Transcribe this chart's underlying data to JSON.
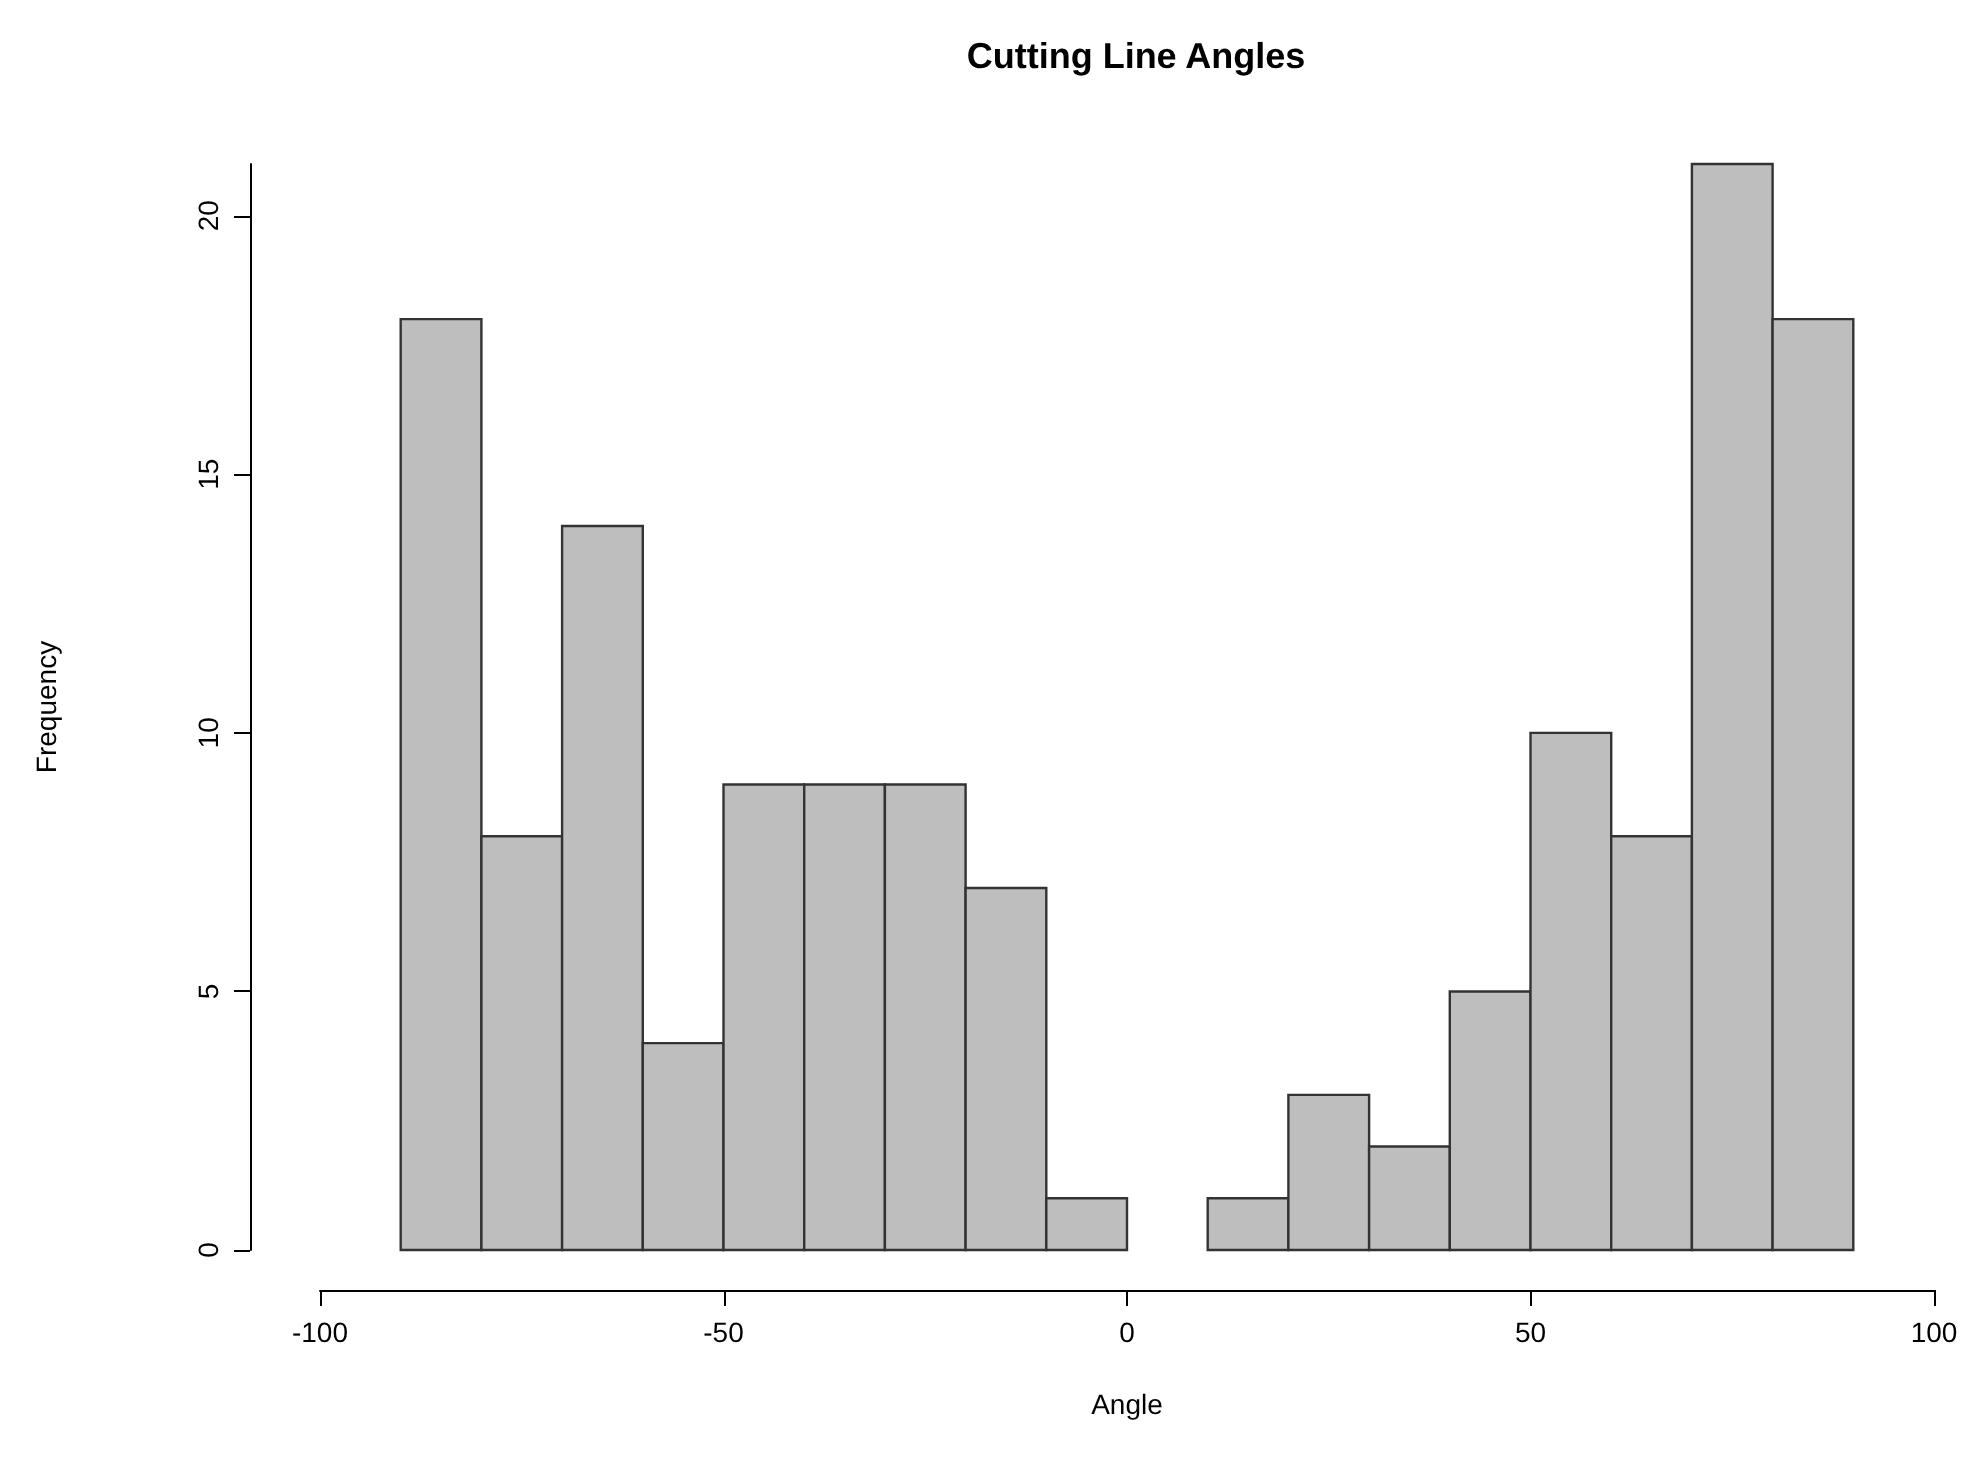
{
  "chart_data": {
    "type": "histogram",
    "title": "Cutting Line Angles",
    "xlabel": "Angle",
    "ylabel": "Frequency",
    "bins": [
      -90,
      -80,
      -70,
      -60,
      -50,
      -40,
      -30,
      -20,
      -10,
      0,
      10,
      20,
      30,
      40,
      50,
      60,
      70,
      80,
      90
    ],
    "values": [
      18,
      8,
      14,
      4,
      9,
      9,
      9,
      7,
      1,
      0,
      1,
      3,
      2,
      5,
      10,
      8,
      21,
      18
    ],
    "color": "#bebebe",
    "xlim": [
      -100,
      100
    ],
    "xticks": [
      -100,
      -50,
      0,
      50,
      100
    ],
    "ylim": [
      0,
      21
    ],
    "yticks": [
      0,
      5,
      10,
      15,
      20
    ],
    "grid": false
  }
}
